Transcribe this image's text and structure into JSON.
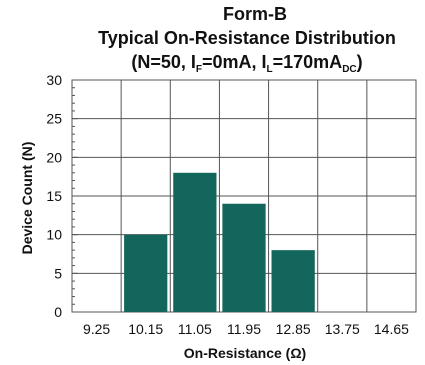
{
  "chart_data": {
    "type": "bar",
    "title": {
      "line1": "Form-B",
      "line2": "Typical On-Resistance Distribution",
      "line3": {
        "open": "(N=50, I",
        "sub1": "F",
        "mid": "=0mA, I",
        "sub2": "L",
        "mid2": "=170mA",
        "sub3": "DC",
        "close": ")"
      }
    },
    "xlabel": "On-Resistance (Ω)",
    "ylabel": "Device Count (N)",
    "categories": [
      "9.25",
      "10.15",
      "11.05",
      "11.95",
      "12.85",
      "13.75",
      "14.65"
    ],
    "values": [
      0,
      10,
      18,
      14,
      8,
      0,
      0
    ],
    "ylim": [
      0,
      30
    ],
    "yticks": [
      0,
      5,
      10,
      15,
      20,
      25,
      30
    ],
    "grid": true,
    "bar_color": "#13665b",
    "grid_color": "#555555"
  }
}
